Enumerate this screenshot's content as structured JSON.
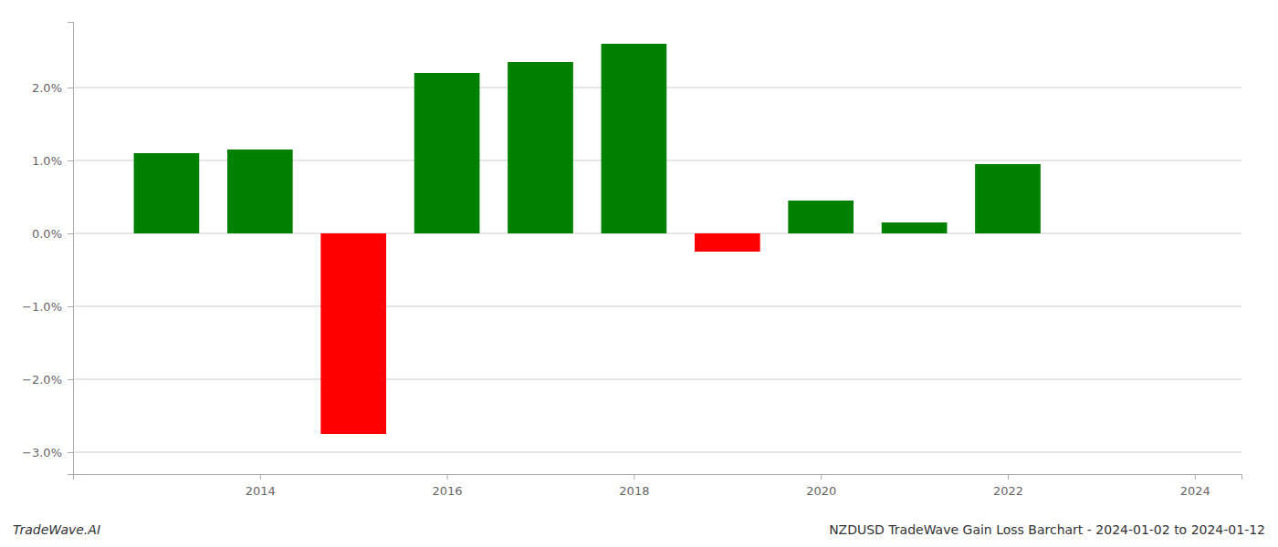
{
  "chart_data": {
    "type": "bar",
    "x": [
      2013,
      2014,
      2015,
      2016,
      2017,
      2018,
      2019,
      2020,
      2021,
      2022,
      2023
    ],
    "values": [
      1.1,
      1.15,
      -2.75,
      2.2,
      2.35,
      2.6,
      -0.25,
      0.45,
      0.15,
      0.95,
      0.0
    ],
    "colors": [
      "#008000",
      "#008000",
      "#ff0000",
      "#008000",
      "#008000",
      "#008000",
      "#ff0000",
      "#008000",
      "#008000",
      "#008000",
      "#008000"
    ],
    "xlim": [
      2012.0,
      2024.5
    ],
    "xticks": [
      2014,
      2016,
      2018,
      2020,
      2022,
      2024
    ],
    "ylim": [
      -3.3,
      2.9
    ],
    "yticks": [
      {
        "value": -3.0,
        "label": "−3.0%"
      },
      {
        "value": -2.0,
        "label": "−2.0%"
      },
      {
        "value": -1.0,
        "label": "−1.0%"
      },
      {
        "value": 0.0,
        "label": "0.0%"
      },
      {
        "value": 1.0,
        "label": "1.0%"
      },
      {
        "value": 2.0,
        "label": "2.0%"
      }
    ],
    "grid": true,
    "annotations": [
      "TradeWave.AI",
      "NZDUSD TradeWave Gain Loss Barchart - 2024-01-02 to 2024-01-12"
    ]
  }
}
